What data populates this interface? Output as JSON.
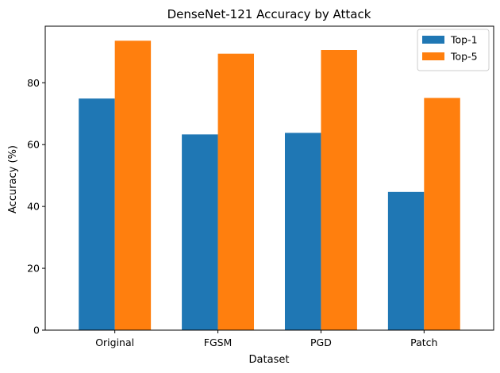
{
  "chart_data": {
    "type": "bar",
    "title": "DenseNet-121 Accuracy by Attack",
    "xlabel": "Dataset",
    "ylabel": "Accuracy (%)",
    "categories": [
      "Original",
      "FGSM",
      "PGD",
      "Patch"
    ],
    "series": [
      {
        "name": "Top-1",
        "values": [
          74.9,
          63.3,
          63.8,
          44.7
        ],
        "color": "#1f77b4"
      },
      {
        "name": "Top-5",
        "values": [
          93.6,
          89.4,
          90.6,
          75.1
        ],
        "color": "#ff7f0e"
      }
    ],
    "ylim": [
      0,
      98.3
    ],
    "yticks": [
      0,
      20,
      40,
      60,
      80
    ],
    "grid": false,
    "legend_position": "top-right"
  }
}
